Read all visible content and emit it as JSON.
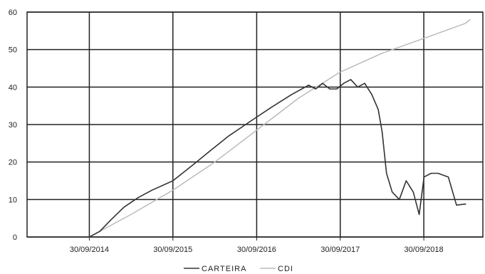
{
  "chart_data": {
    "type": "line",
    "title": "",
    "xlabel": "",
    "ylabel": "",
    "ylim": [
      0,
      60
    ],
    "yticks": [
      0,
      10,
      20,
      30,
      40,
      50,
      60
    ],
    "xticks": [
      "2014-09-30",
      "2015-09-30",
      "2016-09-30",
      "2017-09-30",
      "2018-09-30"
    ],
    "xtick_labels": [
      "30/09/2014",
      "30/09/2015",
      "30/09/2016",
      "30/09/2017",
      "30/09/2018"
    ],
    "xlim": [
      "2014-01-01",
      "2019-06-15"
    ],
    "grid": true,
    "legend_position": "bottom-center",
    "series": [
      {
        "name": "CARTEIRA",
        "color": "#333333",
        "points": [
          [
            "2014-09-30",
            0
          ],
          [
            "2014-11-15",
            1.5
          ],
          [
            "2015-01-01",
            4.5
          ],
          [
            "2015-03-01",
            8
          ],
          [
            "2015-05-01",
            10.5
          ],
          [
            "2015-07-01",
            12.5
          ],
          [
            "2015-09-30",
            15
          ],
          [
            "2016-01-01",
            19.5
          ],
          [
            "2016-03-01",
            22.5
          ],
          [
            "2016-06-01",
            27
          ],
          [
            "2016-09-30",
            32
          ],
          [
            "2016-12-01",
            34.5
          ],
          [
            "2017-03-01",
            38
          ],
          [
            "2017-05-15",
            40.5
          ],
          [
            "2017-06-15",
            39.5
          ],
          [
            "2017-07-15",
            41
          ],
          [
            "2017-08-15",
            39.5
          ],
          [
            "2017-09-15",
            39.5
          ],
          [
            "2017-10-15",
            41
          ],
          [
            "2017-11-15",
            42
          ],
          [
            "2017-12-15",
            40
          ],
          [
            "2018-01-15",
            41
          ],
          [
            "2018-02-15",
            38
          ],
          [
            "2018-03-15",
            34
          ],
          [
            "2018-04-01",
            28
          ],
          [
            "2018-04-20",
            17
          ],
          [
            "2018-05-15",
            12
          ],
          [
            "2018-06-15",
            10
          ],
          [
            "2018-07-15",
            15
          ],
          [
            "2018-08-15",
            12
          ],
          [
            "2018-09-10",
            6
          ],
          [
            "2018-10-01",
            16
          ],
          [
            "2018-11-01",
            17
          ],
          [
            "2018-12-01",
            17
          ],
          [
            "2019-01-15",
            16
          ],
          [
            "2019-02-20",
            8.5
          ],
          [
            "2019-04-01",
            8.8
          ]
        ]
      },
      {
        "name": "CDI",
        "color": "#bbbbbb",
        "points": [
          [
            "2014-09-30",
            0
          ],
          [
            "2015-03-31",
            6
          ],
          [
            "2015-09-30",
            12.5
          ],
          [
            "2016-03-31",
            20
          ],
          [
            "2016-09-30",
            28.5
          ],
          [
            "2017-03-31",
            37
          ],
          [
            "2017-09-30",
            44
          ],
          [
            "2018-03-31",
            49
          ],
          [
            "2018-09-30",
            53
          ],
          [
            "2019-03-31",
            57
          ],
          [
            "2019-04-20",
            58
          ]
        ]
      }
    ]
  }
}
